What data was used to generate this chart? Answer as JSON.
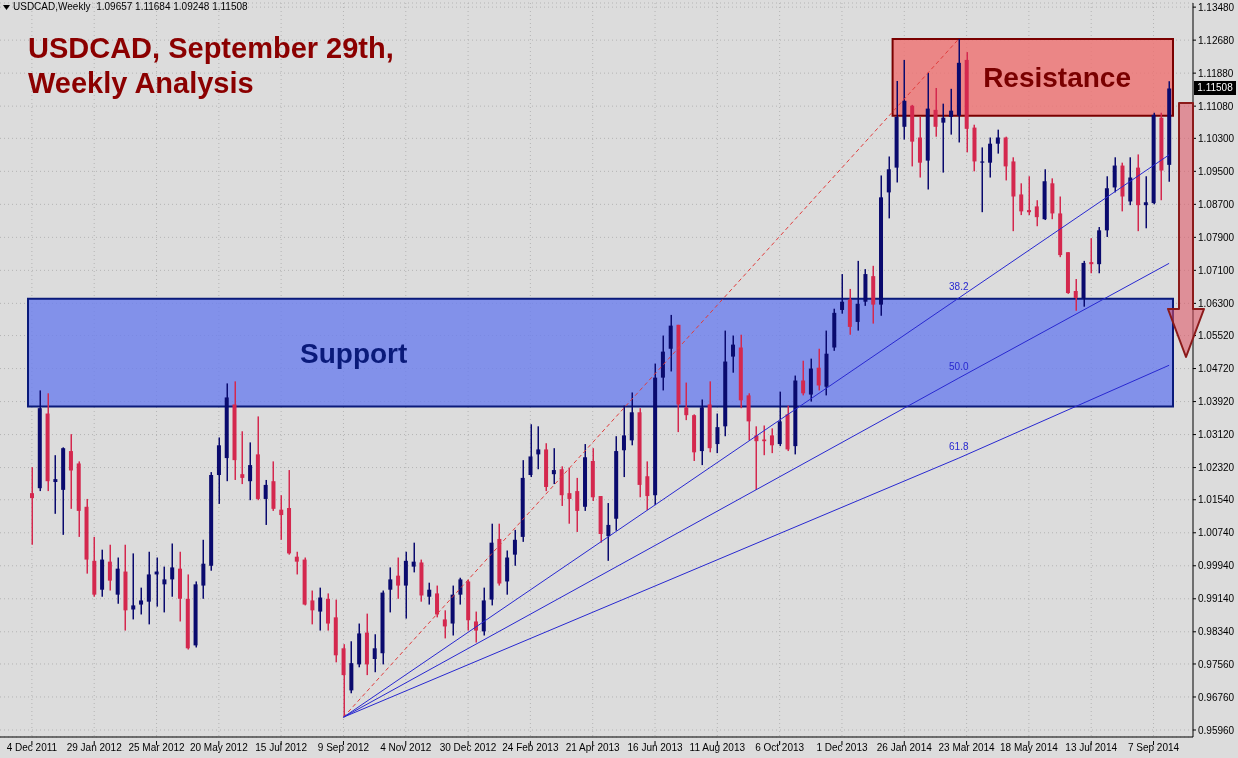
{
  "chart_data": {
    "type": "candlestick",
    "title": "USDCAD, September 29th, Weekly Analysis",
    "annotations": [
      "USDCAD,Weekly  1.09657 1.11684 1.09248 1.11508",
      "1.11508"
    ],
    "categories": [
      "4 Dec 2011",
      null,
      null,
      null,
      null,
      null,
      null,
      null,
      "29 Jan 2012",
      null,
      null,
      null,
      null,
      null,
      null,
      null,
      "25 Mar 2012",
      null,
      null,
      null,
      null,
      null,
      null,
      null,
      "20 May 2012",
      null,
      null,
      null,
      null,
      null,
      null,
      null,
      "15 Jul 2012",
      null,
      null,
      null,
      null,
      null,
      null,
      null,
      "9 Sep 2012",
      null,
      null,
      null,
      null,
      null,
      null,
      null,
      "4 Nov 2012",
      null,
      null,
      null,
      null,
      null,
      null,
      null,
      "30 Dec 2012",
      null,
      null,
      null,
      null,
      null,
      null,
      null,
      "24 Feb 2013",
      null,
      null,
      null,
      null,
      null,
      null,
      null,
      "21 Apr 2013",
      null,
      null,
      null,
      null,
      null,
      null,
      null,
      "16 Jun 2013",
      null,
      null,
      null,
      null,
      null,
      null,
      null,
      "11 Aug 2013",
      null,
      null,
      null,
      null,
      null,
      null,
      null,
      "6 Oct 2013",
      null,
      null,
      null,
      null,
      null,
      null,
      null,
      "1 Dec 2013",
      null,
      null,
      null,
      null,
      null,
      null,
      null,
      "26 Jan 2014",
      null,
      null,
      null,
      null,
      null,
      null,
      null,
      "23 Mar 2014",
      null,
      null,
      null,
      null,
      null,
      null,
      null,
      "18 May 2014",
      null,
      null,
      null,
      null,
      null,
      null,
      null,
      "13 Jul 2014",
      null,
      null,
      null,
      null,
      null,
      null,
      null,
      "7 Sep 2014",
      null,
      null
    ],
    "ohlc": [
      [
        1.017,
        1.0233,
        1.0045,
        1.0158
      ],
      [
        1.0182,
        1.0419,
        1.0175,
        1.0376
      ],
      [
        1.0363,
        1.0412,
        1.0175,
        1.0199
      ],
      [
        1.0197,
        1.0262,
        1.012,
        1.0204
      ],
      [
        1.0178,
        1.0281,
        1.0069,
        1.0279
      ],
      [
        1.0272,
        1.0313,
        1.0132,
        1.0225
      ],
      [
        1.0242,
        1.0247,
        1.0064,
        1.0127
      ],
      [
        1.0137,
        1.0156,
        0.9975,
        1.0009
      ],
      [
        1.0006,
        1.0064,
        0.9919,
        0.9924
      ],
      [
        0.9936,
        1.0033,
        0.9919,
        1.0009
      ],
      [
        1.0004,
        1.0045,
        0.9934,
        0.9958
      ],
      [
        0.9924,
        1.0014,
        0.9902,
        0.9987
      ],
      [
        0.998,
        1.0045,
        0.9837,
        0.9886
      ],
      [
        0.9888,
        1.0024,
        0.9864,
        0.9898
      ],
      [
        0.99,
        0.9941,
        0.9876,
        0.991
      ],
      [
        0.9907,
        1.0028,
        0.9852,
        0.9973
      ],
      [
        0.9973,
        1.0014,
        0.9895,
        0.998
      ],
      [
        0.9949,
        0.9992,
        0.9881,
        0.9961
      ],
      [
        0.9961,
        1.0048,
        0.9919,
        0.999
      ],
      [
        0.9987,
        1.0028,
        0.9859,
        0.9914
      ],
      [
        0.9914,
        0.9973,
        0.9791,
        0.9794
      ],
      [
        0.9801,
        0.9956,
        0.9796,
        0.9949
      ],
      [
        0.9946,
        1.0057,
        0.9914,
        0.9999
      ],
      [
        0.9994,
        1.0221,
        0.9982,
        1.0214
      ],
      [
        1.0214,
        1.0305,
        1.0144,
        1.0286
      ],
      [
        1.0255,
        1.0436,
        1.0199,
        1.0402
      ],
      [
        1.0385,
        1.0441,
        1.0202,
        1.025
      ],
      [
        1.0216,
        1.032,
        1.0192,
        1.0207
      ],
      [
        1.0199,
        1.0293,
        1.0153,
        1.0238
      ],
      [
        1.0264,
        1.0356,
        1.0153,
        1.0156
      ],
      [
        1.0156,
        1.0202,
        1.0093,
        1.019
      ],
      [
        1.0199,
        1.0247,
        1.0127,
        1.0132
      ],
      [
        1.013,
        1.0165,
        1.0057,
        1.0117
      ],
      [
        1.0134,
        1.0226,
        1.0021,
        1.0024
      ],
      [
        1.0016,
        1.0028,
        0.9973,
        1.0004
      ],
      [
        1.0009,
        1.0014,
        0.9898,
        0.99
      ],
      [
        0.991,
        0.9934,
        0.9852,
        0.9886
      ],
      [
        0.9883,
        0.9941,
        0.9837,
        0.9917
      ],
      [
        0.9914,
        0.9927,
        0.9837,
        0.9854
      ],
      [
        0.9869,
        0.9912,
        0.976,
        0.9777
      ],
      [
        0.9794,
        0.9804,
        0.9627,
        0.9729
      ],
      [
        0.9692,
        0.9811,
        0.9685,
        0.9758
      ],
      [
        0.9755,
        0.9854,
        0.9748,
        0.983
      ],
      [
        0.9832,
        0.9878,
        0.9729,
        0.9755
      ],
      [
        0.9768,
        0.9828,
        0.9736,
        0.9794
      ],
      [
        0.9782,
        0.9934,
        0.9755,
        0.9929
      ],
      [
        0.9936,
        0.999,
        0.9881,
        0.9961
      ],
      [
        0.997,
        1.0014,
        0.9914,
        0.9946
      ],
      [
        0.9946,
        1.0028,
        0.9866,
        1.0006
      ],
      [
        0.9992,
        1.005,
        0.9978,
        1.0004
      ],
      [
        1.0002,
        1.0009,
        0.9907,
        0.9922
      ],
      [
        0.9919,
        0.9953,
        0.99,
        0.9936
      ],
      [
        0.9927,
        0.9946,
        0.9869,
        0.9876
      ],
      [
        0.9864,
        0.9886,
        0.9818,
        0.9847
      ],
      [
        0.9854,
        0.9946,
        0.9825,
        0.9924
      ],
      [
        0.9924,
        0.9965,
        0.99,
        0.9961
      ],
      [
        0.9956,
        0.996,
        0.9837,
        0.9862
      ],
      [
        0.9859,
        0.9883,
        0.9808,
        0.9837
      ],
      [
        0.9835,
        0.9941,
        0.9825,
        0.991
      ],
      [
        0.9912,
        1.0096,
        0.9898,
        1.005
      ],
      [
        1.0059,
        1.0096,
        0.9946,
        0.9951
      ],
      [
        0.9956,
        1.0031,
        0.9924,
        1.0014
      ],
      [
        1.0021,
        1.0081,
        0.9994,
        1.0057
      ],
      [
        1.0064,
        1.025,
        1.0052,
        1.0207
      ],
      [
        1.0214,
        1.0337,
        1.0209,
        1.0259
      ],
      [
        1.0264,
        1.0332,
        1.0228,
        1.0276
      ],
      [
        1.0276,
        1.0291,
        1.0175,
        1.0185
      ],
      [
        1.0216,
        1.0279,
        1.0192,
        1.0226
      ],
      [
        1.0228,
        1.0235,
        1.0139,
        1.0165
      ],
      [
        1.017,
        1.0231,
        1.0096,
        1.0156
      ],
      [
        1.0175,
        1.0207,
        1.0076,
        1.0127
      ],
      [
        1.0137,
        1.0289,
        1.0127,
        1.0257
      ],
      [
        1.0248,
        1.0279,
        1.0151,
        1.016
      ],
      [
        1.0163,
        1.0163,
        1.005,
        1.0071
      ],
      [
        1.0066,
        1.0146,
        1.0006,
        1.0093
      ],
      [
        1.0108,
        1.0308,
        1.0079,
        1.0272
      ],
      [
        1.0274,
        1.0382,
        1.0209,
        1.031
      ],
      [
        1.0298,
        1.0414,
        1.0286,
        1.0366
      ],
      [
        1.0366,
        1.0376,
        1.016,
        1.019
      ],
      [
        1.0211,
        1.0247,
        1.0129,
        1.0163
      ],
      [
        1.0165,
        1.0484,
        1.0141,
        1.045
      ],
      [
        1.045,
        1.0552,
        1.0419,
        1.0513
      ],
      [
        1.052,
        1.0602,
        1.0465,
        1.0576
      ],
      [
        1.0578,
        1.0578,
        1.0318,
        1.0385
      ],
      [
        1.0378,
        1.0438,
        1.0347,
        1.0359
      ],
      [
        1.0359,
        1.0361,
        1.0248,
        1.0269
      ],
      [
        1.0272,
        1.0397,
        1.0238,
        1.0378
      ],
      [
        1.0385,
        1.0441,
        1.0269,
        1.0279
      ],
      [
        1.0289,
        1.0363,
        1.0267,
        1.033
      ],
      [
        1.0332,
        1.0564,
        1.0308,
        1.0489
      ],
      [
        1.0501,
        1.0552,
        1.0462,
        1.053
      ],
      [
        1.0523,
        1.0554,
        1.0376,
        1.0395
      ],
      [
        1.0407,
        1.0412,
        1.0298,
        1.0344
      ],
      [
        1.031,
        1.0332,
        1.0178,
        1.0296
      ],
      [
        1.03,
        1.0334,
        1.0262,
        1.0296
      ],
      [
        1.031,
        1.0327,
        1.0267,
        1.0286
      ],
      [
        1.0289,
        1.0416,
        1.0284,
        1.0344
      ],
      [
        1.0361,
        1.0382,
        1.0272,
        1.0276
      ],
      [
        1.0284,
        1.0455,
        1.0264,
        1.0443
      ],
      [
        1.0443,
        1.0491,
        1.0407,
        1.0412
      ],
      [
        1.0409,
        1.0496,
        1.0392,
        1.0472
      ],
      [
        1.0474,
        1.052,
        1.0419,
        1.0431
      ],
      [
        1.0428,
        1.0564,
        1.0407,
        1.0508
      ],
      [
        1.0523,
        1.0617,
        1.0515,
        1.0607
      ],
      [
        1.0614,
        1.0701,
        1.0605,
        1.0634
      ],
      [
        1.0639,
        1.0665,
        1.0554,
        1.0573
      ],
      [
        1.0585,
        1.0733,
        1.0564,
        1.0629
      ],
      [
        1.0634,
        1.0713,
        1.0624,
        1.0701
      ],
      [
        1.0696,
        1.0721,
        1.0581,
        1.0627
      ],
      [
        1.0627,
        1.094,
        1.06,
        1.0887
      ],
      [
        1.0899,
        1.0986,
        1.0836,
        1.0955
      ],
      [
        1.0959,
        1.1169,
        1.0923,
        1.1082
      ],
      [
        1.1058,
        1.122,
        1.1027,
        1.1121
      ],
      [
        1.1109,
        1.1111,
        1.0962,
        1.1022
      ],
      [
        1.1032,
        1.1082,
        1.0935,
        1.0971
      ],
      [
        1.0976,
        1.1189,
        1.0906,
        1.1102
      ],
      [
        1.1099,
        1.1152,
        1.1034,
        1.1058
      ],
      [
        1.1068,
        1.1114,
        1.0947,
        1.108
      ],
      [
        1.1082,
        1.115,
        1.1039,
        1.1097
      ],
      [
        1.1085,
        1.1271,
        1.102,
        1.1213
      ],
      [
        1.122,
        1.1239,
        1.0996,
        1.1053
      ],
      [
        1.1056,
        1.1063,
        1.095,
        1.0974
      ],
      [
        1.0971,
        1.1008,
        1.0851,
        1.0974
      ],
      [
        1.0971,
        1.1032,
        1.0935,
        1.1017
      ],
      [
        1.1017,
        1.1051,
        1.0993,
        1.1032
      ],
      [
        1.1032,
        1.1034,
        1.0928,
        1.0962
      ],
      [
        1.0974,
        1.0984,
        1.0805,
        1.0889
      ],
      [
        1.0894,
        1.0921,
        1.0844,
        1.0853
      ],
      [
        1.0856,
        1.0938,
        1.0844,
        1.0851
      ],
      [
        1.0865,
        1.088,
        1.0817,
        1.0839
      ],
      [
        1.0834,
        1.0955,
        1.0832,
        1.0926
      ],
      [
        1.0921,
        1.0933,
        1.0834,
        1.0848
      ],
      [
        1.0848,
        1.0889,
        1.0742,
        1.0747
      ],
      [
        1.0754,
        1.0754,
        1.0653,
        1.0655
      ],
      [
        1.066,
        1.0689,
        1.0612,
        1.0643
      ],
      [
        1.0643,
        1.0733,
        1.0622,
        1.0728
      ],
      [
        1.073,
        1.0788,
        1.0703,
        1.0725
      ],
      [
        1.0725,
        1.0815,
        1.0703,
        1.0807
      ],
      [
        1.0807,
        1.0938,
        1.0791,
        1.0909
      ],
      [
        1.0911,
        1.0984,
        1.0899,
        1.0964
      ],
      [
        1.0964,
        1.0971,
        1.0853,
        1.0889
      ],
      [
        1.0877,
        1.0984,
        1.0868,
        1.0935
      ],
      [
        1.0959,
        1.0991,
        1.0805,
        1.0868
      ],
      [
        1.0868,
        1.0938,
        1.0812,
        1.0875
      ],
      [
        1.0873,
        1.1092,
        1.087,
        1.1087
      ],
      [
        1.108,
        1.1092,
        1.088,
        1.0952
      ],
      [
        1.09657,
        1.11684,
        1.09248,
        1.11508
      ]
    ],
    "colors": [
      "#d4284e",
      "#0a0a6e",
      "#d4284e",
      "#0a0a6e",
      "#0a0a6e",
      "#d4284e",
      "#d4284e",
      "#d4284e",
      "#d4284e",
      "#0a0a6e",
      "#d4284e",
      "#0a0a6e",
      "#d4284e",
      "#0a0a6e",
      "#0a0a6e",
      "#0a0a6e",
      "#0a0a6e",
      "#0a0a6e",
      "#0a0a6e",
      "#d4284e",
      "#d4284e",
      "#0a0a6e",
      "#0a0a6e",
      "#0a0a6e",
      "#0a0a6e",
      "#0a0a6e",
      "#d4284e",
      "#d4284e",
      "#0a0a6e",
      "#d4284e",
      "#0a0a6e",
      "#d4284e",
      "#d4284e",
      "#d4284e",
      "#d4284e",
      "#d4284e",
      "#d4284e",
      "#0a0a6e",
      "#d4284e",
      "#d4284e",
      "#d4284e",
      "#0a0a6e",
      "#0a0a6e",
      "#d4284e",
      "#0a0a6e",
      "#0a0a6e",
      "#0a0a6e",
      "#d4284e",
      "#0a0a6e",
      "#0a0a6e",
      "#d4284e",
      "#0a0a6e",
      "#d4284e",
      "#d4284e",
      "#0a0a6e",
      "#0a0a6e",
      "#d4284e",
      "#d4284e",
      "#0a0a6e",
      "#0a0a6e",
      "#d4284e",
      "#0a0a6e",
      "#0a0a6e",
      "#0a0a6e",
      "#0a0a6e",
      "#0a0a6e",
      "#d4284e",
      "#0a0a6e",
      "#d4284e",
      "#d4284e",
      "#d4284e",
      "#0a0a6e",
      "#d4284e",
      "#d4284e",
      "#0a0a6e",
      "#0a0a6e",
      "#0a0a6e",
      "#0a0a6e",
      "#d4284e",
      "#d4284e",
      "#0a0a6e",
      "#0a0a6e",
      "#0a0a6e",
      "#d4284e",
      "#d4284e",
      "#d4284e",
      "#0a0a6e",
      "#d4284e",
      "#0a0a6e",
      "#0a0a6e",
      "#0a0a6e",
      "#d4284e",
      "#d4284e",
      "#d4284e",
      "#d4284e",
      "#d4284e",
      "#0a0a6e",
      "#d4284e",
      "#0a0a6e",
      "#d4284e",
      "#0a0a6e",
      "#d4284e",
      "#0a0a6e",
      "#0a0a6e",
      "#0a0a6e",
      "#d4284e",
      "#0a0a6e",
      "#0a0a6e",
      "#d4284e",
      "#0a0a6e",
      "#0a0a6e",
      "#0a0a6e",
      "#0a0a6e",
      "#d4284e",
      "#d4284e",
      "#0a0a6e",
      "#d4284e",
      "#0a0a6e",
      "#0a0a6e",
      "#0a0a6e",
      "#d4284e",
      "#d4284e",
      "#0a0a6e",
      "#0a0a6e",
      "#0a0a6e",
      "#d4284e",
      "#d4284e",
      "#d4284e",
      "#d4284e",
      "#d4284e",
      "#0a0a6e",
      "#d4284e",
      "#d4284e",
      "#d4284e",
      "#d4284e",
      "#0a0a6e",
      "#d4284e",
      "#0a0a6e",
      "#0a0a6e",
      "#0a0a6e",
      "#d4284e",
      "#0a0a6e",
      "#d4284e",
      "#0a0a6e",
      "#0a0a6e",
      "#d4284e",
      "#0a0a6e"
    ],
    "series": [
      {
        "type": "line",
        "color": "#e03c3c",
        "line_style": "dashed",
        "values": [
          null,
          null,
          null,
          null,
          null,
          null,
          null,
          null,
          null,
          null,
          null,
          null,
          null,
          null,
          null,
          null,
          null,
          null,
          null,
          null,
          null,
          null,
          null,
          null,
          null,
          null,
          null,
          null,
          null,
          null,
          null,
          null,
          null,
          null,
          null,
          null,
          null,
          null,
          null,
          null,
          0.9627,
          null,
          null,
          null,
          null,
          null,
          null,
          null,
          null,
          null,
          null,
          null,
          null,
          null,
          null,
          null,
          null,
          null,
          null,
          null,
          null,
          null,
          null,
          null,
          null,
          null,
          null,
          null,
          null,
          null,
          null,
          null,
          null,
          null,
          null,
          null,
          null,
          null,
          null,
          null,
          null,
          null,
          null,
          null,
          null,
          null,
          null,
          null,
          null,
          null,
          null,
          null,
          null,
          null,
          null,
          null,
          null,
          null,
          null,
          null,
          null,
          null,
          null,
          null,
          null,
          null,
          null,
          null,
          null,
          null,
          null,
          null,
          null,
          null,
          null,
          null,
          null,
          null,
          null,
          1.1271,
          null,
          null,
          null,
          null,
          null,
          null,
          null,
          null,
          null,
          null,
          null,
          null,
          null,
          null,
          null,
          null,
          null,
          null,
          null,
          null,
          null,
          null,
          null,
          null,
          null,
          null,
          null
        ]
      },
      {
        "type": "line",
        "name": "38.2",
        "color": "#2828d0",
        "line_style": "solid",
        "values": [
          null,
          null,
          null,
          null,
          null,
          null,
          null,
          null,
          null,
          null,
          null,
          null,
          null,
          null,
          null,
          null,
          null,
          null,
          null,
          null,
          null,
          null,
          null,
          null,
          null,
          null,
          null,
          null,
          null,
          null,
          null,
          null,
          null,
          null,
          null,
          null,
          null,
          null,
          null,
          null,
          0.9627,
          null,
          null,
          null,
          null,
          null,
          null,
          null,
          null,
          null,
          null,
          null,
          null,
          null,
          null,
          null,
          null,
          null,
          null,
          null,
          null,
          null,
          null,
          null,
          null,
          null,
          null,
          null,
          null,
          null,
          null,
          null,
          null,
          null,
          null,
          null,
          null,
          null,
          null,
          null,
          null,
          null,
          null,
          null,
          null,
          null,
          null,
          null,
          null,
          null,
          null,
          null,
          null,
          null,
          null,
          null,
          null,
          null,
          null,
          null,
          null,
          null,
          null,
          null,
          null,
          null,
          null,
          null,
          null,
          null,
          null,
          null,
          null,
          null,
          null,
          null,
          null,
          null,
          null,
          1.0643,
          null,
          null,
          null,
          null,
          null,
          null,
          null,
          null,
          null,
          null,
          null,
          null,
          null,
          null,
          null,
          null,
          null,
          null,
          null,
          null,
          null,
          null,
          null,
          null,
          null,
          null,
          1.099
        ]
      },
      {
        "type": "line",
        "name": "50.0",
        "color": "#2828d0",
        "line_style": "solid",
        "values": [
          null,
          null,
          null,
          null,
          null,
          null,
          null,
          null,
          null,
          null,
          null,
          null,
          null,
          null,
          null,
          null,
          null,
          null,
          null,
          null,
          null,
          null,
          null,
          null,
          null,
          null,
          null,
          null,
          null,
          null,
          null,
          null,
          null,
          null,
          null,
          null,
          null,
          null,
          null,
          null,
          0.9627,
          null,
          null,
          null,
          null,
          null,
          null,
          null,
          null,
          null,
          null,
          null,
          null,
          null,
          null,
          null,
          null,
          null,
          null,
          null,
          null,
          null,
          null,
          null,
          null,
          null,
          null,
          null,
          null,
          null,
          null,
          null,
          null,
          null,
          null,
          null,
          null,
          null,
          null,
          null,
          null,
          null,
          null,
          null,
          null,
          null,
          null,
          null,
          null,
          null,
          null,
          null,
          null,
          null,
          null,
          null,
          null,
          null,
          null,
          null,
          null,
          null,
          null,
          null,
          null,
          null,
          null,
          null,
          null,
          null,
          null,
          null,
          null,
          null,
          null,
          null,
          null,
          null,
          null,
          1.0449,
          null,
          null,
          null,
          null,
          null,
          null,
          null,
          null,
          null,
          null,
          null,
          null,
          null,
          null,
          null,
          null,
          null,
          null,
          null,
          null,
          null,
          null,
          null,
          null,
          null,
          null,
          1.0727
        ]
      },
      {
        "type": "line",
        "name": "61.8",
        "color": "#2828d0",
        "line_style": "solid",
        "values": [
          null,
          null,
          null,
          null,
          null,
          null,
          null,
          null,
          null,
          null,
          null,
          null,
          null,
          null,
          null,
          null,
          null,
          null,
          null,
          null,
          null,
          null,
          null,
          null,
          null,
          null,
          null,
          null,
          null,
          null,
          null,
          null,
          null,
          null,
          null,
          null,
          null,
          null,
          null,
          null,
          0.9627,
          null,
          null,
          null,
          null,
          null,
          null,
          null,
          null,
          null,
          null,
          null,
          null,
          null,
          null,
          null,
          null,
          null,
          null,
          null,
          null,
          null,
          null,
          null,
          null,
          null,
          null,
          null,
          null,
          null,
          null,
          null,
          null,
          null,
          null,
          null,
          null,
          null,
          null,
          null,
          null,
          null,
          null,
          null,
          null,
          null,
          null,
          null,
          null,
          null,
          null,
          null,
          null,
          null,
          null,
          null,
          null,
          null,
          null,
          null,
          null,
          null,
          null,
          null,
          null,
          null,
          null,
          null,
          null,
          null,
          null,
          null,
          null,
          null,
          null,
          null,
          null,
          null,
          null,
          1.0255,
          null,
          null,
          null,
          null,
          null,
          null,
          null,
          null,
          null,
          null,
          null,
          null,
          null,
          null,
          null,
          null,
          null,
          null,
          null,
          null,
          null,
          null,
          null,
          null,
          null,
          null,
          1.048
        ]
      }
    ],
    "bands": [
      {
        "axis": "y",
        "from": 1.038,
        "to": 1.0641,
        "label": "Support",
        "color": "#6b7eee"
      },
      {
        "axis": "y",
        "from": 1.1085,
        "to": 1.1271,
        "label": "Resistance",
        "color": "#ef7070"
      }
    ],
    "ylim": [
      0.9579,
      1.1358
    ],
    "yticks": [
      {
        "value": 0.9596,
        "label": "0.95960"
      },
      {
        "value": 0.9676,
        "label": "0.96760"
      },
      {
        "value": 0.9756,
        "label": "0.97560"
      },
      {
        "value": 0.9834,
        "label": "0.98340"
      },
      {
        "value": 0.9914,
        "label": "0.99140"
      },
      {
        "value": 0.9994,
        "label": "0.99940"
      },
      {
        "value": 1.0074,
        "label": "1.00740"
      },
      {
        "value": 1.0154,
        "label": "1.01540"
      },
      {
        "value": 1.0232,
        "label": "1.02320"
      },
      {
        "value": 1.0312,
        "label": "1.03120"
      },
      {
        "value": 1.0392,
        "label": "1.03920"
      },
      {
        "value": 1.0472,
        "label": "1.04720"
      },
      {
        "value": 1.0552,
        "label": "1.05520"
      },
      {
        "value": 1.063,
        "label": "1.06300"
      },
      {
        "value": 1.071,
        "label": "1.07100"
      },
      {
        "value": 1.079,
        "label": "1.07900"
      },
      {
        "value": 1.087,
        "label": "1.08700"
      },
      {
        "value": 1.095,
        "label": "1.09500"
      },
      {
        "value": 1.103,
        "label": "1.10300"
      },
      {
        "value": 1.1108,
        "label": "1.11080"
      },
      {
        "value": 1.1188,
        "label": "1.11880"
      },
      {
        "value": 1.1268,
        "label": "1.12680"
      },
      {
        "value": 1.1348,
        "label": "1.13480"
      }
    ],
    "grid": true
  }
}
